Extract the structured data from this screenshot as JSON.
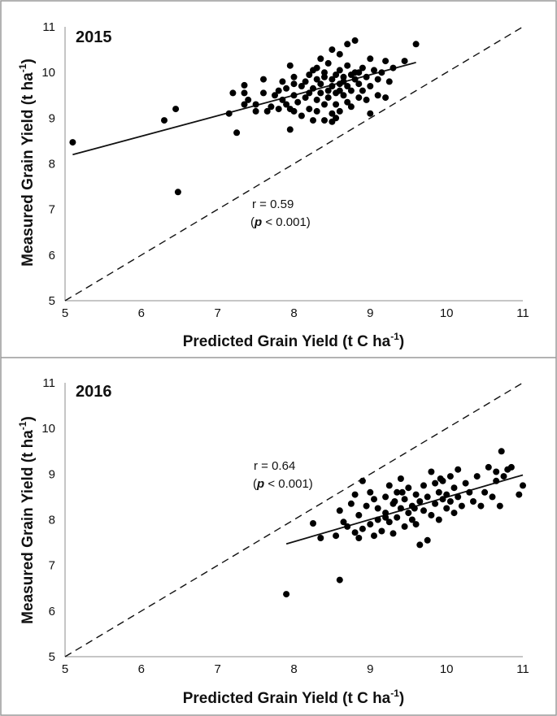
{
  "chart_data": [
    {
      "type": "scatter",
      "title": "2015",
      "xlabel": "Predicted Grain Yield (t C ha",
      "xlabel_sup": "-1",
      "xlabel_end": ")",
      "ylabel": "Measured Grain Yield (t ha",
      "ylabel_sup": "-1",
      "ylabel_end": ")",
      "xlim": [
        5,
        11
      ],
      "ylim": [
        5,
        11
      ],
      "x_ticks": [
        "5",
        "6",
        "7",
        "8",
        "9",
        "10",
        "11"
      ],
      "y_ticks": [
        "5",
        "6",
        "7",
        "8",
        "9",
        "10",
        "11"
      ],
      "grid": false,
      "annotation_r": "r = 0.59",
      "annotation_p_open": "(",
      "annotation_p_italic": "p",
      "annotation_p_rest": " < 0.001)",
      "trend_line": {
        "x": [
          5.1,
          9.6
        ],
        "y": [
          8.2,
          10.22
        ]
      },
      "identity_line": {
        "x": [
          5,
          11
        ],
        "y": [
          5,
          11
        ]
      },
      "points": [
        [
          5.1,
          8.47
        ],
        [
          6.3,
          8.95
        ],
        [
          6.45,
          9.2
        ],
        [
          6.48,
          7.38
        ],
        [
          7.15,
          9.1
        ],
        [
          7.2,
          9.55
        ],
        [
          7.25,
          8.68
        ],
        [
          7.35,
          9.3
        ],
        [
          7.35,
          9.55
        ],
        [
          7.35,
          9.72
        ],
        [
          7.4,
          9.4
        ],
        [
          7.5,
          9.3
        ],
        [
          7.5,
          9.15
        ],
        [
          7.6,
          9.85
        ],
        [
          7.6,
          9.55
        ],
        [
          7.65,
          9.15
        ],
        [
          7.7,
          9.25
        ],
        [
          7.75,
          9.5
        ],
        [
          7.8,
          9.2
        ],
        [
          7.8,
          9.6
        ],
        [
          7.85,
          9.8
        ],
        [
          7.85,
          9.4
        ],
        [
          7.9,
          9.3
        ],
        [
          7.9,
          9.65
        ],
        [
          7.95,
          9.2
        ],
        [
          7.95,
          10.15
        ],
        [
          7.95,
          8.75
        ],
        [
          8.0,
          9.15
        ],
        [
          8.0,
          9.5
        ],
        [
          8.0,
          9.9
        ],
        [
          8.05,
          9.35
        ],
        [
          8.1,
          9.7
        ],
        [
          8.1,
          9.05
        ],
        [
          8.15,
          9.8
        ],
        [
          8.15,
          9.45
        ],
        [
          8.2,
          9.55
        ],
        [
          8.2,
          9.2
        ],
        [
          8.2,
          9.95
        ],
        [
          8.25,
          8.95
        ],
        [
          8.25,
          9.65
        ],
        [
          8.3,
          9.85
        ],
        [
          8.3,
          9.4
        ],
        [
          8.3,
          10.1
        ],
        [
          8.3,
          9.15
        ],
        [
          8.35,
          9.55
        ],
        [
          8.35,
          9.75
        ],
        [
          8.35,
          10.3
        ],
        [
          8.4,
          9.3
        ],
        [
          8.4,
          9.9
        ],
        [
          8.4,
          10.0
        ],
        [
          8.4,
          8.95
        ],
        [
          8.45,
          9.6
        ],
        [
          8.45,
          9.45
        ],
        [
          8.45,
          10.2
        ],
        [
          8.5,
          9.7
        ],
        [
          8.5,
          9.1
        ],
        [
          8.5,
          9.85
        ],
        [
          8.5,
          10.5
        ],
        [
          8.5,
          8.92
        ],
        [
          8.55,
          9.55
        ],
        [
          8.55,
          9.95
        ],
        [
          8.55,
          9.3
        ],
        [
          8.6,
          9.75
        ],
        [
          8.6,
          10.05
        ],
        [
          8.6,
          9.6
        ],
        [
          8.6,
          9.15
        ],
        [
          8.6,
          10.4
        ],
        [
          8.65,
          9.8
        ],
        [
          8.65,
          9.9
        ],
        [
          8.65,
          9.5
        ],
        [
          8.7,
          9.7
        ],
        [
          8.7,
          10.15
        ],
        [
          8.7,
          9.35
        ],
        [
          8.7,
          10.62
        ],
        [
          8.75,
          9.6
        ],
        [
          8.75,
          9.95
        ],
        [
          8.75,
          9.25
        ],
        [
          8.8,
          9.85
        ],
        [
          8.8,
          10.7
        ],
        [
          8.8,
          10.0
        ],
        [
          8.85,
          9.75
        ],
        [
          8.85,
          9.45
        ],
        [
          8.9,
          10.1
        ],
        [
          8.9,
          9.6
        ],
        [
          8.95,
          9.9
        ],
        [
          8.95,
          9.4
        ],
        [
          9.0,
          10.3
        ],
        [
          9.0,
          9.7
        ],
        [
          9.0,
          9.1
        ],
        [
          9.05,
          10.05
        ],
        [
          9.1,
          9.5
        ],
        [
          9.1,
          9.85
        ],
        [
          9.15,
          10.0
        ],
        [
          9.2,
          10.25
        ],
        [
          9.2,
          9.45
        ],
        [
          9.25,
          9.8
        ],
        [
          9.3,
          10.1
        ],
        [
          9.45,
          10.25
        ],
        [
          9.6,
          10.62
        ],
        [
          8.0,
          9.75
        ],
        [
          8.25,
          10.05
        ],
        [
          8.55,
          9.0
        ],
        [
          8.85,
          10.0
        ]
      ]
    },
    {
      "type": "scatter",
      "title": "2016",
      "xlabel": "Predicted Grain Yield (t C ha",
      "xlabel_sup": "-1",
      "xlabel_end": ")",
      "ylabel": "Measured Grain Yield (t ha",
      "ylabel_sup": "-1",
      "ylabel_end": ")",
      "xlim": [
        5,
        11
      ],
      "ylim": [
        5,
        11
      ],
      "x_ticks": [
        "5",
        "6",
        "7",
        "8",
        "9",
        "10",
        "11"
      ],
      "y_ticks": [
        "5",
        "6",
        "7",
        "8",
        "9",
        "10",
        "11"
      ],
      "grid": false,
      "annotation_r": "r = 0.64",
      "annotation_p_open": "(",
      "annotation_p_italic": "p",
      "annotation_p_rest": " < 0.001)",
      "trend_line": {
        "x": [
          7.9,
          11.0
        ],
        "y": [
          7.47,
          8.98
        ]
      },
      "identity_line": {
        "x": [
          5,
          11
        ],
        "y": [
          5,
          11
        ]
      },
      "points": [
        [
          7.9,
          6.37
        ],
        [
          8.25,
          7.92
        ],
        [
          8.35,
          7.6
        ],
        [
          8.55,
          7.65
        ],
        [
          8.6,
          6.68
        ],
        [
          8.6,
          8.2
        ],
        [
          8.65,
          7.95
        ],
        [
          8.7,
          7.85
        ],
        [
          8.75,
          8.35
        ],
        [
          8.8,
          7.72
        ],
        [
          8.8,
          8.55
        ],
        [
          8.85,
          7.6
        ],
        [
          8.85,
          8.1
        ],
        [
          8.9,
          8.85
        ],
        [
          8.9,
          7.8
        ],
        [
          8.95,
          8.3
        ],
        [
          9.0,
          7.9
        ],
        [
          9.0,
          8.6
        ],
        [
          9.05,
          7.65
        ],
        [
          9.05,
          8.45
        ],
        [
          9.1,
          8.0
        ],
        [
          9.1,
          8.25
        ],
        [
          9.15,
          7.75
        ],
        [
          9.2,
          8.5
        ],
        [
          9.2,
          8.15
        ],
        [
          9.25,
          7.95
        ],
        [
          9.25,
          8.75
        ],
        [
          9.3,
          8.35
        ],
        [
          9.3,
          7.7
        ],
        [
          9.35,
          8.05
        ],
        [
          9.35,
          8.6
        ],
        [
          9.4,
          8.9
        ],
        [
          9.4,
          8.25
        ],
        [
          9.45,
          7.85
        ],
        [
          9.45,
          8.45
        ],
        [
          9.5,
          8.15
        ],
        [
          9.5,
          8.7
        ],
        [
          9.55,
          8.3
        ],
        [
          9.55,
          8.0
        ],
        [
          9.6,
          8.55
        ],
        [
          9.6,
          7.9
        ],
        [
          9.65,
          8.4
        ],
        [
          9.65,
          7.45
        ],
        [
          9.7,
          8.2
        ],
        [
          9.7,
          8.75
        ],
        [
          9.75,
          7.55
        ],
        [
          9.75,
          8.5
        ],
        [
          9.8,
          9.05
        ],
        [
          9.8,
          8.1
        ],
        [
          9.85,
          8.35
        ],
        [
          9.85,
          8.8
        ],
        [
          9.9,
          8.6
        ],
        [
          9.9,
          8.0
        ],
        [
          9.95,
          8.45
        ],
        [
          9.95,
          8.85
        ],
        [
          10.0,
          8.25
        ],
        [
          10.0,
          8.55
        ],
        [
          10.05,
          8.95
        ],
        [
          10.05,
          8.4
        ],
        [
          10.1,
          8.7
        ],
        [
          10.1,
          8.15
        ],
        [
          10.15,
          8.5
        ],
        [
          10.15,
          9.1
        ],
        [
          10.2,
          8.3
        ],
        [
          10.25,
          8.8
        ],
        [
          10.3,
          8.6
        ],
        [
          10.35,
          8.4
        ],
        [
          10.4,
          8.95
        ],
        [
          10.45,
          8.3
        ],
        [
          10.5,
          8.6
        ],
        [
          10.55,
          9.15
        ],
        [
          10.6,
          8.5
        ],
        [
          10.65,
          9.05
        ],
        [
          10.65,
          8.85
        ],
        [
          10.7,
          8.3
        ],
        [
          10.72,
          9.5
        ],
        [
          10.75,
          8.95
        ],
        [
          10.8,
          9.1
        ],
        [
          10.85,
          9.15
        ],
        [
          10.95,
          8.55
        ],
        [
          11.0,
          8.75
        ],
        [
          9.2,
          8.05
        ],
        [
          9.42,
          8.6
        ],
        [
          9.58,
          8.25
        ],
        [
          9.92,
          8.9
        ],
        [
          9.32,
          8.4
        ]
      ]
    }
  ]
}
